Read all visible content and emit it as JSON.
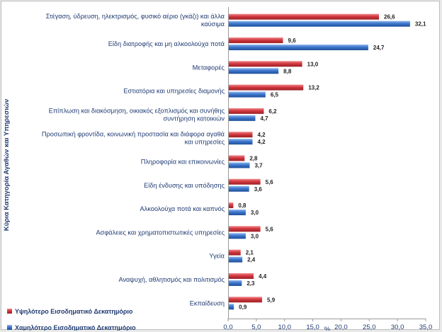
{
  "chart_data": {
    "type": "bar",
    "orientation": "horizontal",
    "ylabel": "Κύρια Κατηγορία Αγαθών και Υπηρεσιών",
    "xlabel": "%",
    "xlim": [
      0,
      35
    ],
    "xticks": [
      "0,0",
      "5,0",
      "10,0",
      "15,0",
      "20,0",
      "25,0",
      "30,0",
      "35,0"
    ],
    "categories": [
      [
        "Στέγαση, ύδρευση, ηλεκτρισμός, φυσικό αέριο (γκάζι) και άλλα",
        "καύσιμα"
      ],
      [
        "Είδη διατροφής και μη αλκοολούχα ποτά"
      ],
      [
        "Μεταφορές"
      ],
      [
        "Εστιατόρια και υπηρεσίες διαμονής"
      ],
      [
        "Επίπλωση και διακόσμηση, οικιακός εξοπλισμός και συνήθης",
        "συντήρηση κατοικιών"
      ],
      [
        "Προσωπική φροντίδα, κοινωνική προστασία και διάφορα αγαθά",
        "και υπηρεσίες"
      ],
      [
        "Πληροφορία και επικοινωνίες"
      ],
      [
        "Είδη ένδυσης και υπόδησης"
      ],
      [
        "Αλκοολούχα ποτά και καπνός"
      ],
      [
        "Ασφάλειες και χρηματοπιστωτικές υπηρεσίες"
      ],
      [
        "Υγεία"
      ],
      [
        "Αναψυχή, αθλητισμός και πολιτισμός"
      ],
      [
        "Εκπαίδευση"
      ]
    ],
    "series": [
      {
        "name": "Υψηλότερο Εισοδηματικό Δεκατημόριο",
        "color": "#c8353c",
        "values": [
          26.6,
          9.6,
          13.0,
          13.2,
          6.2,
          4.2,
          2.8,
          5.6,
          0.8,
          5.6,
          2.1,
          4.4,
          5.9
        ],
        "labels": [
          "26,6",
          "9,6",
          "13,0",
          "13,2",
          "6,2",
          "4,2",
          "2,8",
          "5,6",
          "0,8",
          "5,6",
          "2,1",
          "4,4",
          "5,9"
        ]
      },
      {
        "name": "Χαμηλότερο Εισοδηματικό Δεκατημόριο",
        "color": "#3b73c6",
        "values": [
          32.1,
          24.7,
          8.8,
          6.5,
          4.7,
          4.2,
          3.7,
          3.6,
          3.0,
          3.0,
          2.4,
          2.3,
          0.9
        ],
        "labels": [
          "32,1",
          "24,7",
          "8,8",
          "6,5",
          "4,7",
          "4,2",
          "3,7",
          "3,6",
          "3,0",
          "3,0",
          "2,4",
          "2,3",
          "0,9"
        ]
      }
    ],
    "legend_position": "bottom-left",
    "grid": false
  }
}
